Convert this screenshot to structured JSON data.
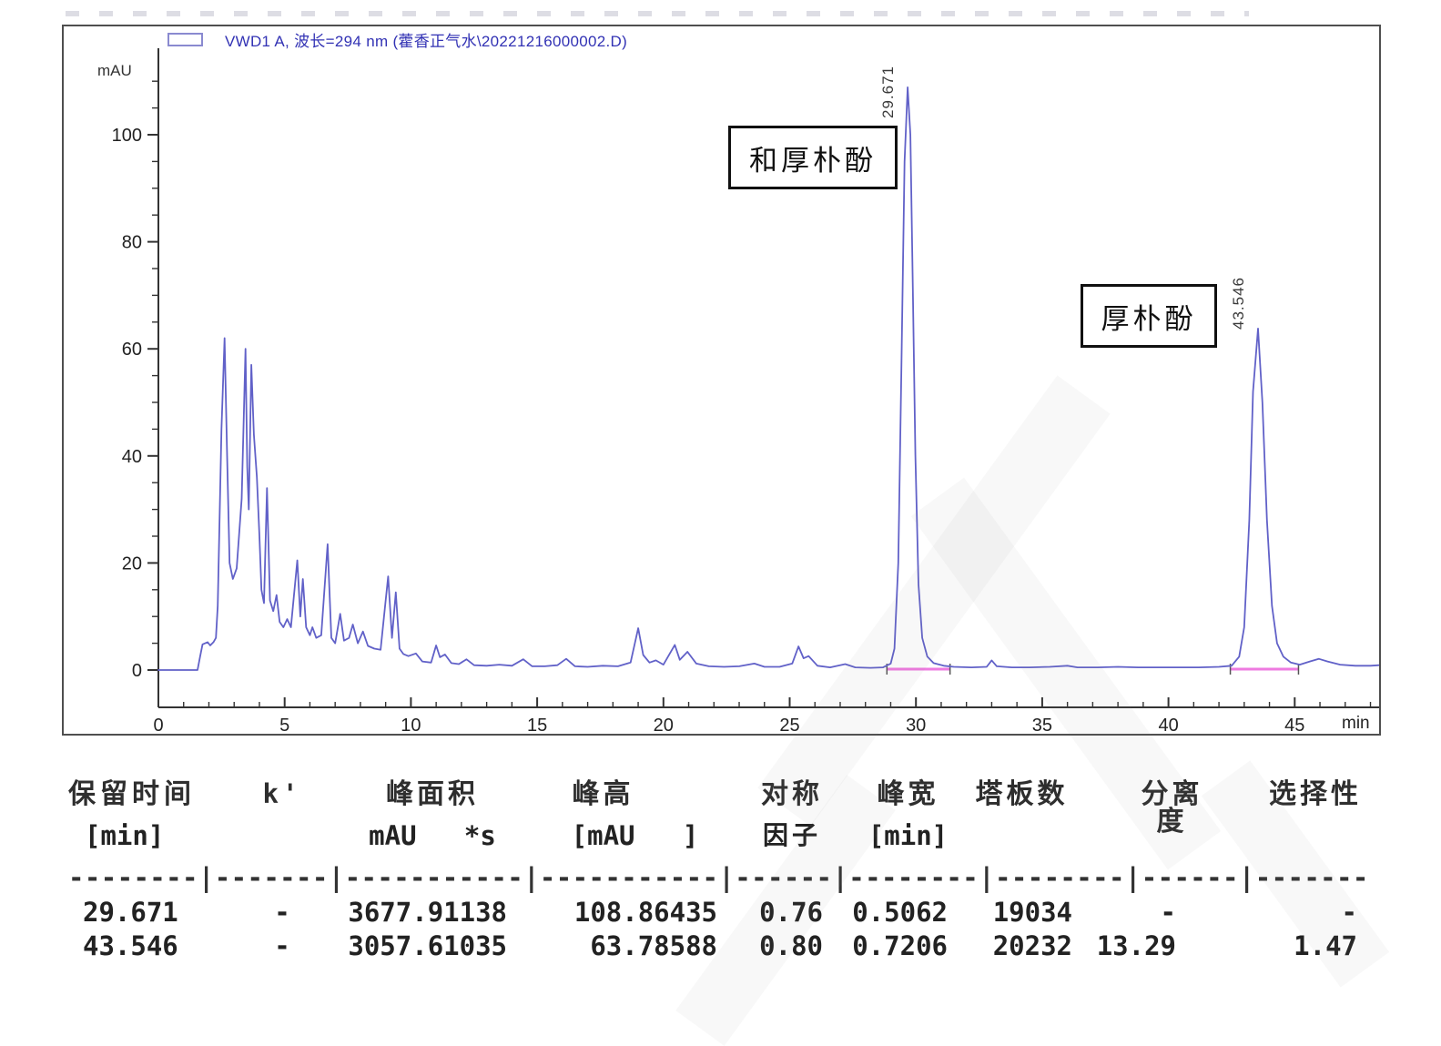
{
  "chart": {
    "legend": "VWD1 A, 波长=294 nm (藿香正气水\\20221216000002.D)",
    "y_unit": "mAU",
    "x_unit": "min",
    "peak_labels": [
      "29.671",
      "43.546"
    ],
    "annotations": [
      {
        "text": "和厚朴酚"
      },
      {
        "text": "厚朴酚"
      }
    ]
  },
  "chart_data": {
    "type": "line",
    "title": "VWD1 A, 波长=294 nm (藿香正气水\\20221216000002.D)",
    "xlabel": "min",
    "ylabel": "mAU",
    "xlim": [
      0,
      48.4
    ],
    "ylim": [
      -2,
      112
    ],
    "grid": false,
    "x_ticks": [
      0,
      5,
      10,
      15,
      20,
      25,
      30,
      35,
      40,
      45
    ],
    "x_minor_step": 1,
    "y_ticks": [
      0,
      20,
      40,
      60,
      80,
      100
    ],
    "y_minor_step": 5,
    "legend_position": "top-left",
    "trace_color": "#6161c8",
    "integration_color": "#ee7ae0",
    "peaks": [
      {
        "retention_time": 29.671,
        "height": 108.86435,
        "area": 3677.91138,
        "compound": "和厚朴酚"
      },
      {
        "retention_time": 43.546,
        "height": 63.78588,
        "area": 3057.61035,
        "compound": "厚朴酚"
      }
    ],
    "integration_baselines": [
      {
        "t_start": 28.85,
        "t_end": 31.35
      },
      {
        "t_start": 42.45,
        "t_end": 45.15
      }
    ],
    "series": [
      {
        "name": "VWD1 A 294 nm",
        "color": "#6161c8",
        "points": [
          [
            0,
            0
          ],
          [
            1.55,
            0
          ],
          [
            1.65,
            2.5
          ],
          [
            1.75,
            4.8
          ],
          [
            1.95,
            5.2
          ],
          [
            2.05,
            4.6
          ],
          [
            2.18,
            5.2
          ],
          [
            2.28,
            6
          ],
          [
            2.35,
            12
          ],
          [
            2.5,
            45
          ],
          [
            2.62,
            62
          ],
          [
            2.72,
            40
          ],
          [
            2.82,
            20
          ],
          [
            2.95,
            17
          ],
          [
            3.1,
            19
          ],
          [
            3.3,
            32
          ],
          [
            3.45,
            60
          ],
          [
            3.52,
            38
          ],
          [
            3.58,
            30
          ],
          [
            3.68,
            57
          ],
          [
            3.78,
            44
          ],
          [
            3.9,
            36
          ],
          [
            4.0,
            25
          ],
          [
            4.08,
            15
          ],
          [
            4.18,
            12.5
          ],
          [
            4.3,
            34
          ],
          [
            4.42,
            13
          ],
          [
            4.55,
            11
          ],
          [
            4.68,
            14
          ],
          [
            4.8,
            9
          ],
          [
            4.95,
            8
          ],
          [
            5.1,
            9.5
          ],
          [
            5.25,
            8
          ],
          [
            5.5,
            20.5
          ],
          [
            5.62,
            10
          ],
          [
            5.72,
            17
          ],
          [
            5.85,
            8
          ],
          [
            6.0,
            6.5
          ],
          [
            6.1,
            8
          ],
          [
            6.25,
            6
          ],
          [
            6.45,
            6.5
          ],
          [
            6.7,
            23.5
          ],
          [
            6.85,
            6
          ],
          [
            7.0,
            5
          ],
          [
            7.2,
            10.5
          ],
          [
            7.35,
            5.5
          ],
          [
            7.55,
            6
          ],
          [
            7.7,
            8.5
          ],
          [
            7.9,
            5
          ],
          [
            8.1,
            7.2
          ],
          [
            8.3,
            4.5
          ],
          [
            8.55,
            4
          ],
          [
            8.8,
            3.8
          ],
          [
            9.1,
            17.5
          ],
          [
            9.25,
            6
          ],
          [
            9.4,
            14.5
          ],
          [
            9.55,
            4
          ],
          [
            9.7,
            3
          ],
          [
            9.9,
            2.6
          ],
          [
            10.2,
            3.1
          ],
          [
            10.45,
            1.6
          ],
          [
            10.8,
            1.4
          ],
          [
            11.0,
            4.6
          ],
          [
            11.15,
            2.4
          ],
          [
            11.35,
            2.9
          ],
          [
            11.6,
            1.3
          ],
          [
            11.9,
            1.1
          ],
          [
            12.2,
            2.0
          ],
          [
            12.5,
            0.9
          ],
          [
            13.0,
            0.8
          ],
          [
            13.5,
            1.0
          ],
          [
            14.0,
            0.8
          ],
          [
            14.45,
            2.0
          ],
          [
            14.8,
            0.7
          ],
          [
            15.3,
            0.7
          ],
          [
            15.8,
            0.9
          ],
          [
            16.15,
            2.1
          ],
          [
            16.5,
            0.7
          ],
          [
            17.0,
            0.6
          ],
          [
            17.6,
            0.8
          ],
          [
            18.2,
            0.7
          ],
          [
            18.7,
            1.4
          ],
          [
            19.0,
            7.8
          ],
          [
            19.2,
            2.8
          ],
          [
            19.45,
            1.4
          ],
          [
            19.7,
            1.8
          ],
          [
            20.0,
            1.0
          ],
          [
            20.45,
            4.7
          ],
          [
            20.65,
            1.9
          ],
          [
            20.95,
            3.4
          ],
          [
            21.3,
            1.2
          ],
          [
            21.8,
            0.7
          ],
          [
            22.4,
            0.6
          ],
          [
            23.0,
            0.7
          ],
          [
            23.6,
            1.2
          ],
          [
            24.0,
            0.6
          ],
          [
            24.6,
            0.6
          ],
          [
            25.1,
            1.2
          ],
          [
            25.35,
            4.4
          ],
          [
            25.55,
            2.2
          ],
          [
            25.75,
            2.6
          ],
          [
            26.1,
            0.8
          ],
          [
            26.6,
            0.5
          ],
          [
            27.2,
            1.1
          ],
          [
            27.6,
            0.5
          ],
          [
            28.2,
            0.4
          ],
          [
            28.7,
            0.5
          ],
          [
            29.0,
            1.2
          ],
          [
            29.15,
            4
          ],
          [
            29.3,
            20
          ],
          [
            29.42,
            55
          ],
          [
            29.55,
            95
          ],
          [
            29.671,
            108.86
          ],
          [
            29.78,
            100
          ],
          [
            29.88,
            70
          ],
          [
            29.98,
            40
          ],
          [
            30.1,
            16
          ],
          [
            30.25,
            6
          ],
          [
            30.45,
            2.5
          ],
          [
            30.7,
            1.3
          ],
          [
            31.1,
            0.8
          ],
          [
            31.5,
            0.6
          ],
          [
            32.2,
            0.5
          ],
          [
            32.8,
            0.6
          ],
          [
            33.0,
            1.8
          ],
          [
            33.2,
            0.7
          ],
          [
            33.8,
            0.5
          ],
          [
            34.5,
            0.5
          ],
          [
            35.3,
            0.6
          ],
          [
            36.0,
            0.8
          ],
          [
            36.4,
            0.5
          ],
          [
            37.2,
            0.5
          ],
          [
            38.0,
            0.6
          ],
          [
            38.8,
            0.5
          ],
          [
            39.6,
            0.5
          ],
          [
            40.4,
            0.5
          ],
          [
            41.2,
            0.5
          ],
          [
            42.0,
            0.6
          ],
          [
            42.5,
            0.8
          ],
          [
            42.8,
            2.5
          ],
          [
            43.0,
            8
          ],
          [
            43.2,
            28
          ],
          [
            43.35,
            52
          ],
          [
            43.546,
            63.79
          ],
          [
            43.72,
            50
          ],
          [
            43.9,
            28
          ],
          [
            44.1,
            12
          ],
          [
            44.3,
            5
          ],
          [
            44.55,
            2.5
          ],
          [
            44.85,
            1.4
          ],
          [
            45.2,
            1.0
          ],
          [
            45.6,
            1.6
          ],
          [
            45.95,
            2.1
          ],
          [
            46.3,
            1.6
          ],
          [
            46.8,
            1.0
          ],
          [
            47.4,
            0.8
          ],
          [
            48.0,
            0.8
          ],
          [
            48.35,
            0.9
          ]
        ]
      }
    ]
  },
  "peak_table": {
    "headers": [
      {
        "title": "保留时间",
        "unit": "[min]"
      },
      {
        "title": "k'",
        "unit": ""
      },
      {
        "title": "峰面积",
        "unit": "mAU   *s"
      },
      {
        "title": "峰高",
        "unit": "[mAU   ]"
      },
      {
        "title": "对称",
        "unit": "因子"
      },
      {
        "title": "峰宽",
        "unit": "[min]"
      },
      {
        "title": "塔板数",
        "unit": ""
      },
      {
        "title": "分离度",
        "unit": ""
      },
      {
        "title": "选择性",
        "unit": ""
      }
    ],
    "separator": "--------|-------|-----------|-----------|------|--------|--------|------|-------",
    "rows": [
      [
        "29.671",
        "-",
        "3677.91138",
        "108.86435",
        "0.76",
        "0.5062",
        "19034",
        "-",
        "-"
      ],
      [
        "43.546",
        "-",
        "3057.61035",
        "63.78588",
        "0.80",
        "0.7206",
        "20232",
        "13.29",
        "1.47"
      ]
    ]
  }
}
